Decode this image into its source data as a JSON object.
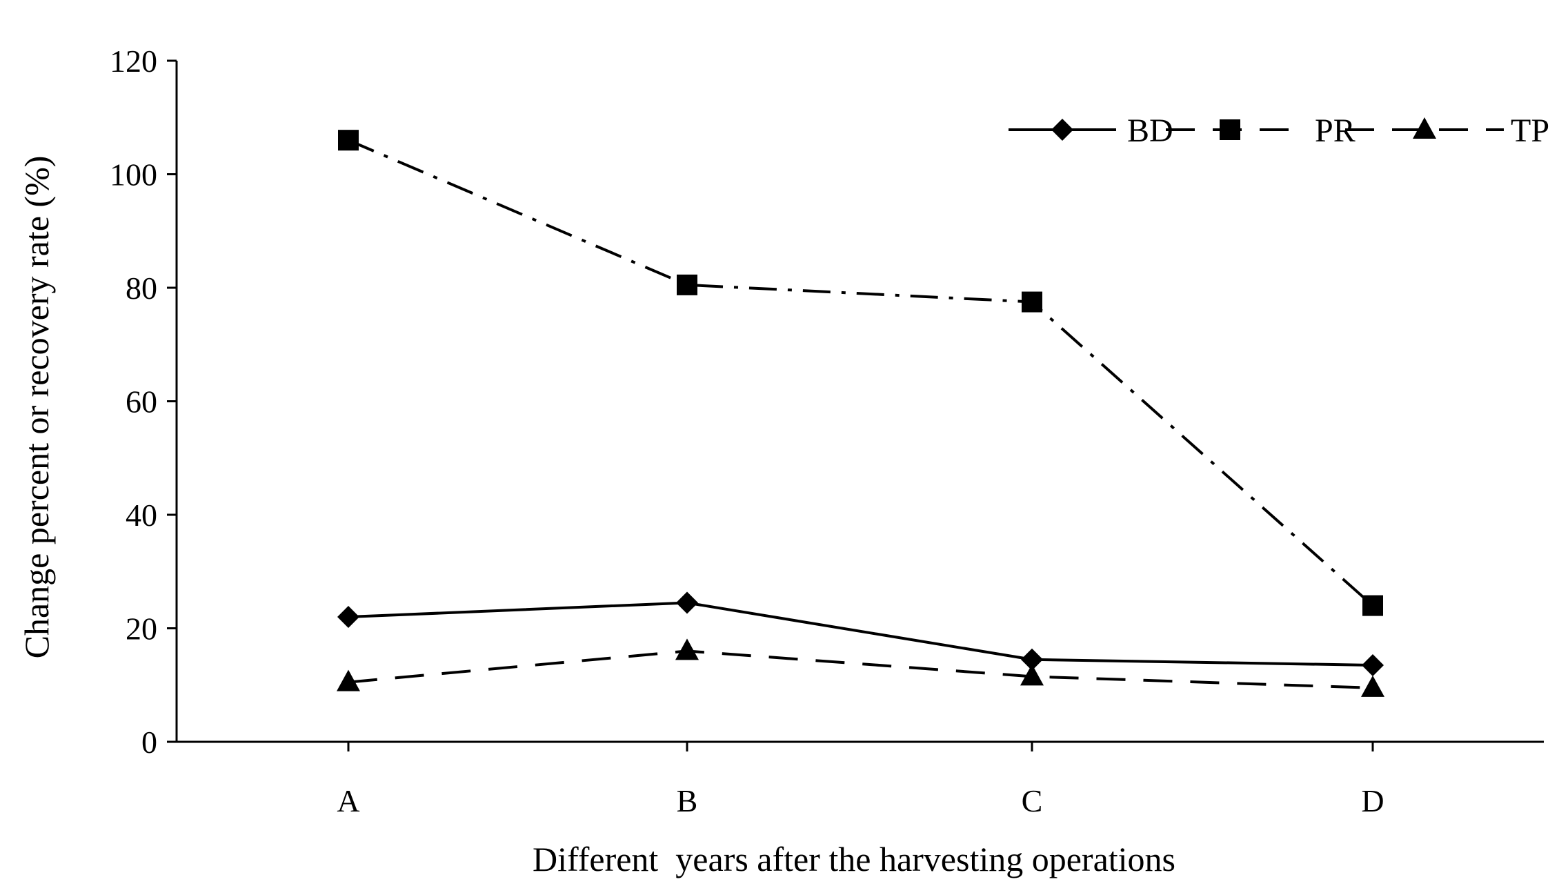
{
  "chart_data": {
    "type": "line",
    "title": "",
    "categories": [
      "A",
      "B",
      "C",
      "D"
    ],
    "xlabel": "Different  years after the harvesting operations",
    "ylabel": "Change percent or recovery rate (%)",
    "ylim": [
      0,
      120
    ],
    "yticks": [
      0,
      20,
      40,
      60,
      80,
      100,
      120
    ],
    "grid": false,
    "legend_position": "top-right",
    "series": [
      {
        "name": "BD",
        "values": [
          22,
          24.5,
          14.5,
          13.5
        ],
        "marker": "diamond",
        "line_style": "solid"
      },
      {
        "name": "PR",
        "values": [
          106,
          80.5,
          77.5,
          24
        ],
        "marker": "square",
        "line_style": "dash-dot"
      },
      {
        "name": "TP",
        "values": [
          10.5,
          16,
          11.5,
          9.5
        ],
        "marker": "triangle",
        "line_style": "dashed"
      }
    ]
  },
  "colors": {
    "line": "#000000",
    "background": "#ffffff"
  }
}
